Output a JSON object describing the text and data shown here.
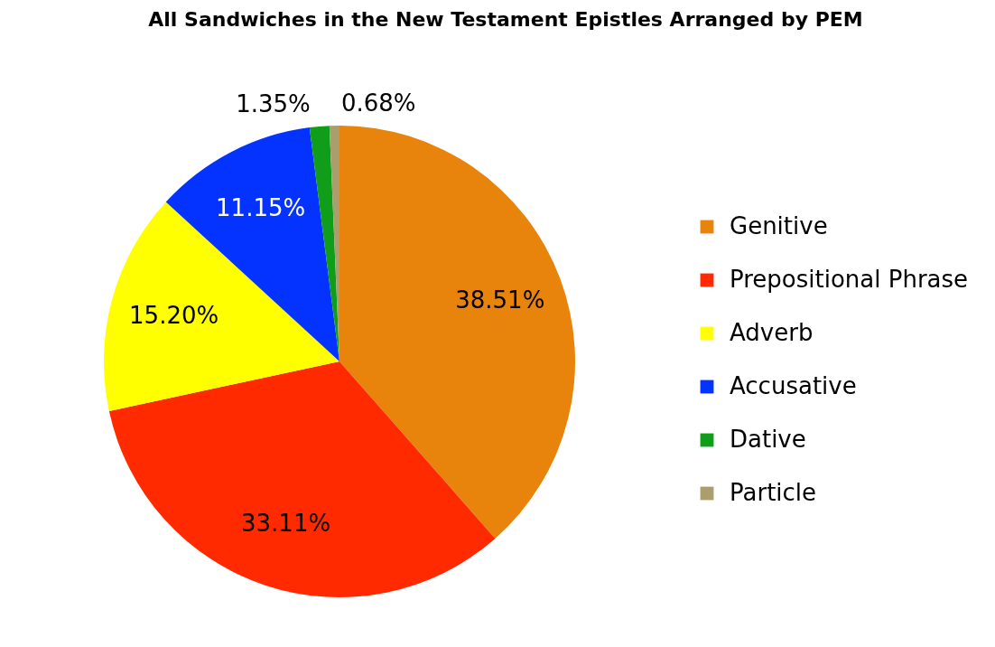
{
  "chart_data": {
    "type": "pie",
    "title": "All Sandwiches in the New Testament Epistles Arranged by PEM",
    "categories": [
      "Genitive",
      "Prepositional Phrase",
      "Adverb",
      "Accusative",
      "Dative",
      "Particle"
    ],
    "values": [
      38.51,
      33.11,
      15.2,
      11.15,
      1.35,
      0.68
    ],
    "colors": [
      "#e8830c",
      "#ff2a00",
      "#ffff00",
      "#0433ff",
      "#109e1a",
      "#a99e6c"
    ],
    "value_labels": [
      "38.51%",
      "33.11%",
      "15.20%",
      "11.15%",
      "1.35%",
      "0.68%"
    ],
    "legend": "right"
  }
}
